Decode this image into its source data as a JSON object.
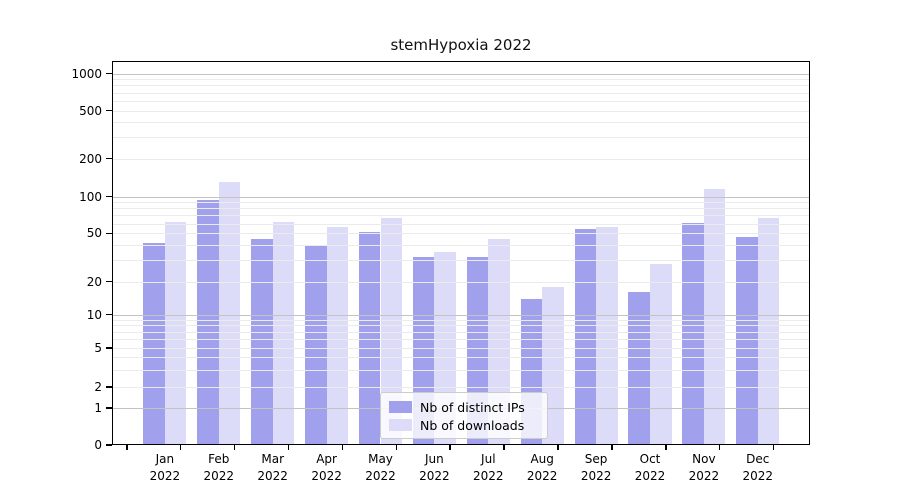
{
  "title": "stemHypoxia 2022",
  "chart_data": {
    "type": "bar",
    "title": "stemHypoxia 2022",
    "x_axis": {
      "months": [
        "Jan",
        "Feb",
        "Mar",
        "Apr",
        "May",
        "Jun",
        "Jul",
        "Aug",
        "Sep",
        "Oct",
        "Nov",
        "Dec"
      ],
      "year": "2022"
    },
    "y_axis": {
      "scale": "symlog",
      "ticks": [
        1000,
        500,
        200,
        100,
        50,
        20,
        10,
        5,
        2,
        1,
        0
      ],
      "ylim": [
        0,
        1240
      ],
      "grid": "on"
    },
    "series": [
      {
        "name": "Nb of distinct IPs",
        "color": "#a0a0ec",
        "values": [
          42,
          93,
          45,
          40,
          51,
          32,
          32,
          14,
          54,
          16,
          61,
          47
        ]
      },
      {
        "name": "Nb of downloads",
        "color": "#dcdcf8",
        "values": [
          62,
          131,
          62,
          56,
          67,
          35,
          45,
          18,
          56,
          28,
          115,
          67
        ]
      }
    ],
    "legend": {
      "position": "inside-bottom-center"
    },
    "colors": {
      "grid_major": "#c3c3c3",
      "grid_minor": "#ebebeb",
      "spine": "#000000",
      "text": "#000000"
    }
  }
}
